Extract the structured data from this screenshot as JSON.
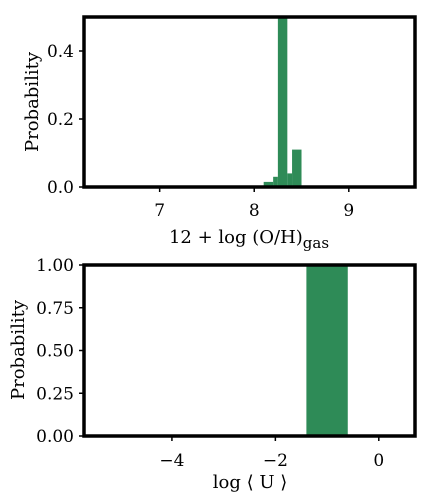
{
  "chart_data": [
    {
      "type": "bar",
      "xlabel": "12 + log (O/H)",
      "xlabel_subscript": "gas",
      "ylabel": "Probability",
      "xlim": [
        6.2,
        9.7
      ],
      "ylim": [
        0,
        0.5
      ],
      "xticks": [
        7,
        8,
        9
      ],
      "yticks": [
        0.0,
        0.2,
        0.4
      ],
      "ytick_labels": [
        "0.0",
        "0.2",
        "0.4"
      ],
      "bar_color": "#2e8b57",
      "bin_width": 0.1,
      "bins": [
        {
          "x0": 8.1,
          "x1": 8.2,
          "value": 0.015
        },
        {
          "x0": 8.2,
          "x1": 8.25,
          "value": 0.03
        },
        {
          "x0": 8.25,
          "x1": 8.35,
          "value": 0.5
        },
        {
          "x0": 8.35,
          "x1": 8.4,
          "value": 0.04
        },
        {
          "x0": 8.4,
          "x1": 8.5,
          "value": 0.11
        }
      ]
    },
    {
      "type": "bar",
      "xlabel": "log ⟨ U ⟩",
      "ylabel": "Probability",
      "xlim": [
        -5.7,
        0.7
      ],
      "ylim": [
        0,
        1.0
      ],
      "xticks": [
        -4,
        -2,
        0
      ],
      "xtick_labels": [
        "−4",
        "−2",
        "0"
      ],
      "yticks": [
        0.0,
        0.25,
        0.5,
        0.75,
        1.0
      ],
      "ytick_labels": [
        "0.00",
        "0.25",
        "0.50",
        "0.75",
        "1.00"
      ],
      "bar_color": "#2e8b57",
      "bins": [
        {
          "x0": -1.4,
          "x1": -0.6,
          "value": 1.0
        }
      ]
    }
  ]
}
